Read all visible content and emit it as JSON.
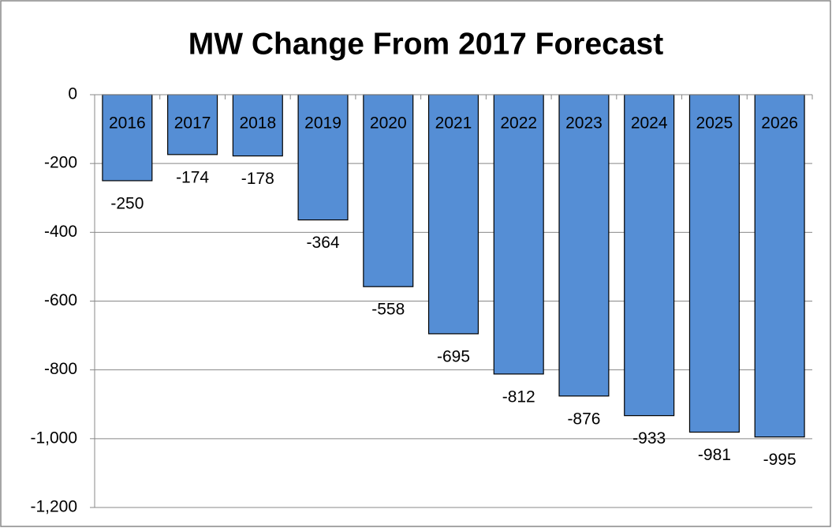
{
  "chart_data": {
    "type": "bar",
    "title": "MW Change From 2017 Forecast",
    "categories": [
      "2016",
      "2017",
      "2018",
      "2019",
      "2020",
      "2021",
      "2022",
      "2023",
      "2024",
      "2025",
      "2026"
    ],
    "values": [
      -250,
      -174,
      -178,
      -364,
      -558,
      -695,
      -812,
      -876,
      -933,
      -981,
      -995
    ],
    "color": "#558ed5",
    "ylim": [
      -1200,
      0
    ],
    "yticks": [
      0,
      -200,
      -400,
      -600,
      -800,
      {
        "value": -1000,
        "label": "-1,000"
      },
      {
        "value": -1200,
        "label": "-1,200"
      }
    ],
    "grid": true
  }
}
